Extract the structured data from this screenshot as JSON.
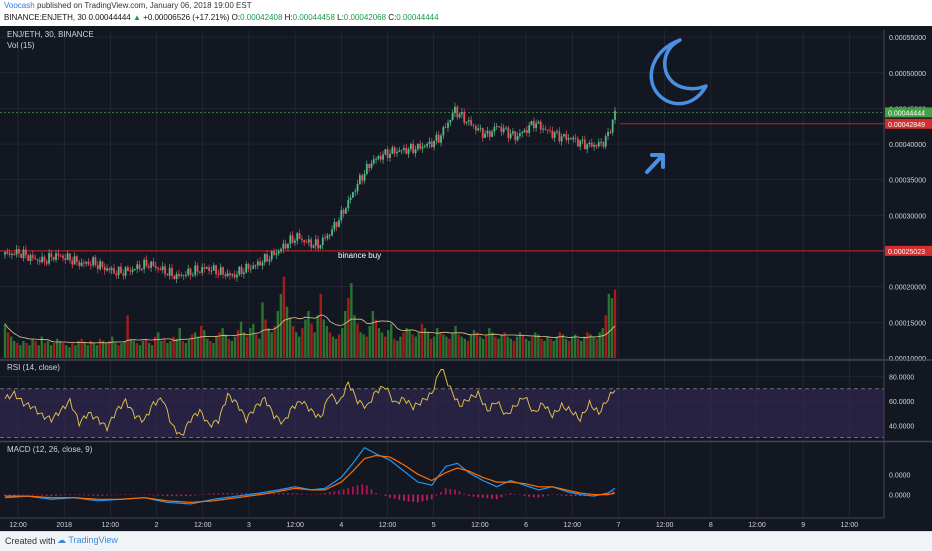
{
  "header": {
    "author": "Voocash",
    "published_text": "published on TradingView.com, January 06, 2018 19:00 EST",
    "symbol_interval": "BINANCE:ENJETH, 30",
    "last_value": "0.00044444",
    "change_arrow": "▲",
    "change": "+0.00006526 (+17.21%)",
    "o_label": "O:",
    "o_value": "0.00042408",
    "h_label": "H:",
    "h_value": "0.00044458",
    "l_label": "L:",
    "l_value": "0.00042068",
    "c_label": "C:",
    "c_value": "0.00044444"
  },
  "footer": {
    "created_with": "Created with",
    "brand": "TradingView"
  },
  "colors": {
    "background": "#131722",
    "grid": "#2a2e39",
    "up": "#53b987",
    "down": "#eb4d5c",
    "volume_up": "#2e7d32",
    "volume_down": "#b71c1c",
    "volume_ma": "#e6c88a",
    "rsi_line": "#e6c74d",
    "rsi_band": "#3a2c5c",
    "macd_line": "#2196f3",
    "signal_line": "#ff6d00",
    "hist_pos": "#c2185b",
    "hist_neg": "#e91e63",
    "level_line": "#c62828",
    "price_label_green": "#43a047",
    "price_label_red": "#d32f2f",
    "drawing_blue": "#4a90e2",
    "axis_text": "#d1d4dc"
  },
  "chart_data": [
    {
      "type": "candlestick",
      "pane": "main",
      "legend": "ENJ/ETH, 30, BINANCE",
      "sublegend": "Vol (15)",
      "x_ticks": [
        "12:00",
        "2018",
        "12:00",
        "2",
        "12:00",
        "3",
        "12:00",
        "4",
        "12:00",
        "5",
        "12:00",
        "6",
        "12:00",
        "7",
        "12:00",
        "8",
        "12:00",
        "9",
        "12:00"
      ],
      "y_ticks": [
        "0.00055000",
        "0.00050000",
        "0.00045000",
        "0.00040000",
        "0.00035000",
        "0.00030000",
        "0.00025000",
        "0.00020000",
        "0.00015000",
        "0.00010000"
      ],
      "ylim": [
        0.0001,
        0.00056
      ],
      "price_labels": [
        {
          "text": "0.00044444",
          "value": 0.00044444,
          "color": "green"
        },
        {
          "text": "0.00042849",
          "value": 0.00042849,
          "color": "red"
        },
        {
          "text": "0.00025023",
          "value": 0.00025023,
          "color": "red"
        }
      ],
      "horizontal_levels": [
        0.00042849,
        0.00025023
      ],
      "annotation": "binance buy",
      "approx_close_path": [
        [
          0,
          0.000245
        ],
        [
          6,
          0.000248
        ],
        [
          10,
          0.000242
        ],
        [
          16,
          0.000236
        ],
        [
          22,
          0.000244
        ],
        [
          27,
          0.00024
        ],
        [
          33,
          0.000232
        ],
        [
          38,
          0.000234
        ],
        [
          43,
          0.000226
        ],
        [
          48,
          0.00022
        ],
        [
          53,
          0.000222
        ],
        [
          58,
          0.000228
        ],
        [
          62,
          0.000232
        ],
        [
          66,
          0.000226
        ],
        [
          70,
          0.00022
        ],
        [
          74,
          0.000214
        ],
        [
          78,
          0.000218
        ],
        [
          82,
          0.000222
        ],
        [
          87,
          0.000226
        ],
        [
          93,
          0.00022
        ],
        [
          98,
          0.000215
        ],
        [
          103,
          0.000224
        ],
        [
          108,
          0.00023
        ],
        [
          113,
          0.00024
        ],
        [
          118,
          0.00025
        ],
        [
          122,
          0.000262
        ],
        [
          126,
          0.00027
        ],
        [
          130,
          0.000262
        ],
        [
          135,
          0.000258
        ],
        [
          140,
          0.000275
        ],
        [
          145,
          0.0003
        ],
        [
          149,
          0.000325
        ],
        [
          153,
          0.00035
        ],
        [
          158,
          0.000375
        ],
        [
          163,
          0.000385
        ],
        [
          168,
          0.00039
        ],
        [
          173,
          0.000392
        ],
        [
          178,
          0.000395
        ],
        [
          183,
          0.0004
        ],
        [
          187,
          0.000408
        ],
        [
          191,
          0.00043
        ],
        [
          194,
          0.000448
        ],
        [
          197,
          0.000438
        ],
        [
          200,
          0.00043
        ],
        [
          204,
          0.00042
        ],
        [
          208,
          0.000412
        ],
        [
          212,
          0.000425
        ],
        [
          216,
          0.000418
        ],
        [
          220,
          0.00041
        ],
        [
          224,
          0.000418
        ],
        [
          228,
          0.00043
        ],
        [
          232,
          0.000422
        ],
        [
          236,
          0.000415
        ],
        [
          240,
          0.00041
        ],
        [
          244,
          0.000408
        ],
        [
          248,
          0.000402
        ],
        [
          252,
          0.000398
        ],
        [
          257,
          0.0004
        ],
        [
          260,
          0.000412
        ],
        [
          263,
          0.000444
        ]
      ],
      "volume": [
        16,
        12,
        10,
        8,
        7,
        6,
        8,
        7,
        6,
        9,
        8,
        6,
        10,
        7,
        8,
        6,
        7,
        9,
        8,
        7,
        6,
        5,
        7,
        6,
        8,
        9,
        7,
        6,
        8,
        7,
        6,
        9,
        8,
        7,
        8,
        10,
        7,
        6,
        7,
        8,
        20,
        9,
        8,
        7,
        6,
        8,
        9,
        7,
        6,
        10,
        12,
        8,
        9,
        7,
        8,
        10,
        9,
        14,
        8,
        7,
        9,
        11,
        12,
        10,
        15,
        13,
        9,
        8,
        7,
        10,
        12,
        14,
        11,
        9,
        8,
        10,
        13,
        17,
        12,
        10,
        14,
        16,
        11,
        9,
        26,
        18,
        14,
        12,
        15,
        22,
        30,
        38,
        24,
        19,
        15,
        12,
        10,
        14,
        18,
        22,
        16,
        12,
        20,
        30,
        18,
        15,
        12,
        10,
        9,
        11,
        14,
        22,
        28,
        35,
        20,
        16,
        12,
        11,
        10,
        15,
        22,
        18,
        14,
        12,
        10,
        13,
        16,
        9,
        8,
        10,
        12,
        14,
        13,
        11,
        10,
        12,
        16,
        14,
        12,
        9,
        10,
        14,
        12,
        11,
        10,
        9,
        12,
        15,
        11,
        10,
        9,
        8,
        11,
        13,
        12,
        10,
        9,
        11,
        14,
        12,
        10,
        9,
        11,
        12,
        10,
        9,
        8,
        10,
        12,
        11,
        9,
        8,
        10,
        12,
        11,
        9,
        8,
        10,
        9,
        8,
        10,
        12,
        11,
        9,
        8,
        10,
        11,
        9,
        8,
        10,
        12,
        11,
        10,
        9,
        12,
        14,
        20,
        30,
        28,
        32
      ]
    },
    {
      "type": "line",
      "pane": "rsi",
      "legend": "RSI (14, close)",
      "y_ticks": [
        "80.0000",
        "60.0000",
        "40.0000"
      ],
      "ylim": [
        28,
        92
      ],
      "band": [
        30,
        70
      ],
      "approx_path": [
        [
          0,
          62
        ],
        [
          4,
          66
        ],
        [
          8,
          58
        ],
        [
          12,
          55
        ],
        [
          16,
          48
        ],
        [
          20,
          45
        ],
        [
          24,
          52
        ],
        [
          28,
          60
        ],
        [
          32,
          42
        ],
        [
          36,
          50
        ],
        [
          40,
          45
        ],
        [
          44,
          38
        ],
        [
          48,
          52
        ],
        [
          52,
          60
        ],
        [
          56,
          48
        ],
        [
          60,
          44
        ],
        [
          64,
          58
        ],
        [
          68,
          62
        ],
        [
          72,
          40
        ],
        [
          76,
          31
        ],
        [
          80,
          45
        ],
        [
          84,
          52
        ],
        [
          88,
          40
        ],
        [
          92,
          44
        ],
        [
          96,
          65
        ],
        [
          100,
          58
        ],
        [
          104,
          45
        ],
        [
          108,
          55
        ],
        [
          112,
          62
        ],
        [
          116,
          48
        ],
        [
          120,
          42
        ],
        [
          124,
          55
        ],
        [
          128,
          60
        ],
        [
          132,
          52
        ],
        [
          136,
          46
        ],
        [
          140,
          66
        ],
        [
          144,
          58
        ],
        [
          148,
          75
        ],
        [
          152,
          60
        ],
        [
          156,
          55
        ],
        [
          160,
          68
        ],
        [
          164,
          72
        ],
        [
          168,
          58
        ],
        [
          172,
          62
        ],
        [
          176,
          55
        ],
        [
          180,
          60
        ],
        [
          184,
          66
        ],
        [
          188,
          88
        ],
        [
          192,
          70
        ],
        [
          196,
          56
        ],
        [
          200,
          62
        ],
        [
          204,
          66
        ],
        [
          208,
          52
        ],
        [
          212,
          60
        ],
        [
          216,
          48
        ],
        [
          220,
          56
        ],
        [
          224,
          64
        ],
        [
          228,
          50
        ],
        [
          232,
          58
        ],
        [
          236,
          48
        ],
        [
          240,
          56
        ],
        [
          244,
          52
        ],
        [
          248,
          45
        ],
        [
          252,
          58
        ],
        [
          256,
          50
        ],
        [
          260,
          62
        ],
        [
          263,
          70
        ]
      ]
    },
    {
      "type": "line",
      "pane": "macd",
      "legend": "MACD (12, 26, close, 9)",
      "y_ticks": [
        "0.0000",
        "0.0000"
      ],
      "ylim": [
        -1.5,
        3.3
      ],
      "series": [
        {
          "name": "MACD",
          "approx_path": [
            [
              0,
              -0.2
            ],
            [
              10,
              -0.1
            ],
            [
              20,
              -0.3
            ],
            [
              30,
              -0.2
            ],
            [
              40,
              -0.4
            ],
            [
              50,
              -0.3
            ],
            [
              60,
              -0.2
            ],
            [
              70,
              -0.5
            ],
            [
              80,
              -0.6
            ],
            [
              90,
              -0.3
            ],
            [
              100,
              -0.1
            ],
            [
              110,
              0.1
            ],
            [
              118,
              0.3
            ],
            [
              125,
              0.5
            ],
            [
              132,
              0.3
            ],
            [
              138,
              0.4
            ],
            [
              145,
              1.1
            ],
            [
              150,
              2.0
            ],
            [
              155,
              3.0
            ],
            [
              160,
              2.6
            ],
            [
              166,
              2.2
            ],
            [
              172,
              1.5
            ],
            [
              178,
              0.8
            ],
            [
              184,
              0.6
            ],
            [
              190,
              1.8
            ],
            [
              195,
              2.0
            ],
            [
              200,
              1.4
            ],
            [
              206,
              0.9
            ],
            [
              212,
              0.5
            ],
            [
              218,
              0.9
            ],
            [
              224,
              0.6
            ],
            [
              230,
              0.3
            ],
            [
              236,
              0.5
            ],
            [
              242,
              0.2
            ],
            [
              248,
              0.0
            ],
            [
              254,
              -0.1
            ],
            [
              260,
              0.1
            ],
            [
              263,
              0.4
            ]
          ]
        },
        {
          "name": "Signal",
          "approx_path": [
            [
              0,
              -0.1
            ],
            [
              10,
              -0.1
            ],
            [
              20,
              -0.2
            ],
            [
              30,
              -0.2
            ],
            [
              40,
              -0.3
            ],
            [
              50,
              -0.3
            ],
            [
              60,
              -0.2
            ],
            [
              70,
              -0.4
            ],
            [
              80,
              -0.5
            ],
            [
              90,
              -0.4
            ],
            [
              100,
              -0.2
            ],
            [
              110,
              0.0
            ],
            [
              118,
              0.2
            ],
            [
              125,
              0.4
            ],
            [
              132,
              0.3
            ],
            [
              138,
              0.3
            ],
            [
              145,
              0.8
            ],
            [
              150,
              1.5
            ],
            [
              155,
              2.3
            ],
            [
              160,
              2.5
            ],
            [
              166,
              2.4
            ],
            [
              172,
              1.9
            ],
            [
              178,
              1.3
            ],
            [
              184,
              0.9
            ],
            [
              190,
              1.4
            ],
            [
              195,
              1.7
            ],
            [
              200,
              1.5
            ],
            [
              206,
              1.1
            ],
            [
              212,
              0.8
            ],
            [
              218,
              0.8
            ],
            [
              224,
              0.7
            ],
            [
              230,
              0.5
            ],
            [
              236,
              0.5
            ],
            [
              242,
              0.3
            ],
            [
              248,
              0.1
            ],
            [
              254,
              0.0
            ],
            [
              260,
              0.0
            ],
            [
              263,
              0.1
            ]
          ]
        }
      ]
    }
  ]
}
